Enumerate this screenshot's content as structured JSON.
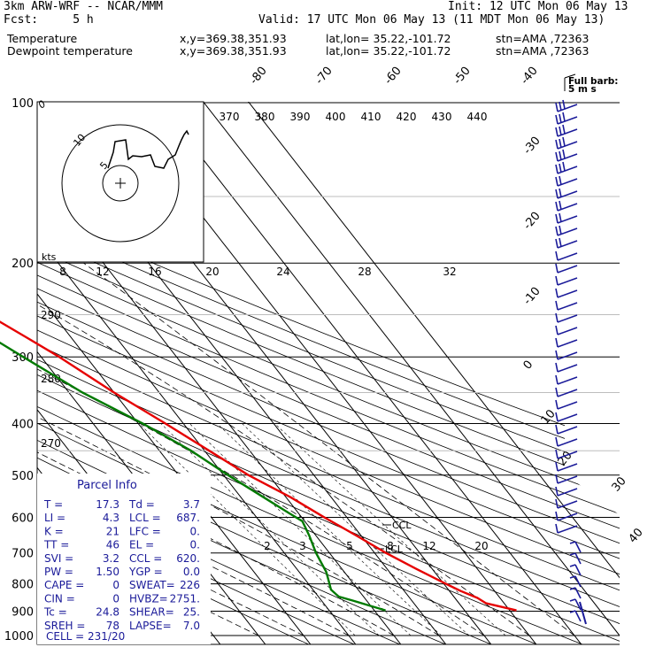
{
  "header": {
    "title": "3km ARW-WRF -- NCAR/MMM",
    "init": "Init: 12 UTC Mon 06 May 13",
    "fcst": "Fcst:     5 h",
    "valid": "Valid: 17 UTC Mon 06 May 13 (11 MDT Mon 06 May 13)",
    "temperature_label": "Temperature",
    "dewpoint_label": "Dewpoint temperature",
    "xy_text": "x,y=369.38,351.93",
    "latlon_text": "lat,lon= 35.22,-101.72",
    "stn_text": "stn=AMA ,72363"
  },
  "colors": {
    "temperature": "#e60000",
    "dewpoint": "#007a00",
    "wind": "#1a1a99",
    "text": "#000000",
    "info": "#1a1a99"
  },
  "chart_data": {
    "type": "line",
    "y_axis": {
      "scale": "log-pressure",
      "unit": "hPa",
      "ticks": [
        "100",
        "200",
        "300",
        "400",
        "500",
        "600",
        "700",
        "800",
        "900",
        "1000"
      ],
      "range": [
        1000,
        100
      ]
    },
    "isotherm_labels": [
      "-80",
      "-70",
      "-60",
      "-50",
      "-40",
      "-30",
      "-20",
      "-10",
      "0",
      "10",
      "20",
      "30",
      "40"
    ],
    "isentrope_labels_top": [
      "370",
      "380",
      "390",
      "400",
      "410",
      "420",
      "430",
      "440"
    ],
    "isentrope_labels_left": [
      "290",
      "280",
      "270"
    ],
    "mixing_ratio_labels": [
      "2",
      "3",
      "5",
      "8",
      "12",
      "20"
    ],
    "ccl_label": "CCL",
    "lcl_label": "LCL",
    "series": [
      {
        "name": "Temperature",
        "unit": "degC",
        "points": [
          [
            897,
            31.5
          ],
          [
            870,
            26
          ],
          [
            850,
            25
          ],
          [
            825,
            22.5
          ],
          [
            800,
            20.5
          ],
          [
            750,
            16.5
          ],
          [
            700,
            12.5
          ],
          [
            650,
            9
          ],
          [
            600,
            5
          ],
          [
            550,
            1
          ],
          [
            500,
            -4.5
          ],
          [
            450,
            -9
          ],
          [
            400,
            -14
          ],
          [
            350,
            -20
          ],
          [
            300,
            -26
          ],
          [
            275,
            -30
          ],
          [
            250,
            -34.5
          ],
          [
            225,
            -41
          ],
          [
            200,
            -48.5
          ],
          [
            180,
            -53
          ],
          [
            160,
            -58
          ],
          [
            140,
            -62
          ],
          [
            120,
            -67
          ],
          [
            105,
            -72
          ],
          [
            100,
            -74
          ]
        ]
      },
      {
        "name": "Dewpoint temperature",
        "unit": "degC",
        "points": [
          [
            897,
            2.5
          ],
          [
            880,
            0
          ],
          [
            860,
            -3
          ],
          [
            845,
            -5.5
          ],
          [
            820,
            -6
          ],
          [
            790,
            -5
          ],
          [
            760,
            -4
          ],
          [
            700,
            -3
          ],
          [
            650,
            -1.5
          ],
          [
            610,
            -0.5
          ],
          [
            590,
            -2
          ],
          [
            550,
            -5
          ],
          [
            500,
            -9
          ],
          [
            450,
            -13
          ],
          [
            400,
            -19
          ],
          [
            350,
            -27
          ],
          [
            300,
            -34
          ],
          [
            250,
            -42
          ],
          [
            220,
            -48
          ],
          [
            200,
            -54
          ],
          [
            180,
            -60
          ],
          [
            160,
            -65
          ],
          [
            140,
            -70
          ],
          [
            120,
            -75
          ],
          [
            105,
            -80
          ],
          [
            100,
            -85
          ]
        ]
      }
    ],
    "wind_barbs_label": "Full barb:",
    "wind_barbs_unit": "5 m s",
    "hodograph": {
      "ring_labels": [
        "5",
        "10"
      ],
      "kts_label": "kts",
      "speed_labels": [
        "8",
        "12",
        "16",
        "20",
        "24",
        "28",
        "32"
      ]
    }
  },
  "parcel_info": {
    "title": "Parcel Info",
    "rows": [
      {
        "k1": "T  =",
        "v1": "17.3",
        "k2": "Td =",
        "v2": "3.7"
      },
      {
        "k1": "LI =",
        "v1": "4.3",
        "k2": "LCL =",
        "v2": "687."
      },
      {
        "k1": "K  =",
        "v1": "21",
        "k2": "LFC =",
        "v2": "0."
      },
      {
        "k1": "TT =",
        "v1": "46",
        "k2": "EL  =",
        "v2": "0."
      },
      {
        "k1": "SVI =",
        "v1": "3.2",
        "k2": "CCL =",
        "v2": "620."
      },
      {
        "k1": "PW =",
        "v1": "1.50",
        "k2": "YGP =",
        "v2": "0.0"
      },
      {
        "k1": "CAPE =",
        "v1": "0",
        "k2": "SWEAT=",
        "v2": "226"
      },
      {
        "k1": "CIN =",
        "v1": "0",
        "k2": "HVBZ=",
        "v2": "2751."
      },
      {
        "k1": "Tc =",
        "v1": "24.8",
        "k2": "SHEAR=",
        "v2": "25."
      },
      {
        "k1": "SREH =",
        "v1": "78",
        "k2": "LAPSE=",
        "v2": "7.0"
      }
    ],
    "cell": "CELL = 231/20"
  }
}
